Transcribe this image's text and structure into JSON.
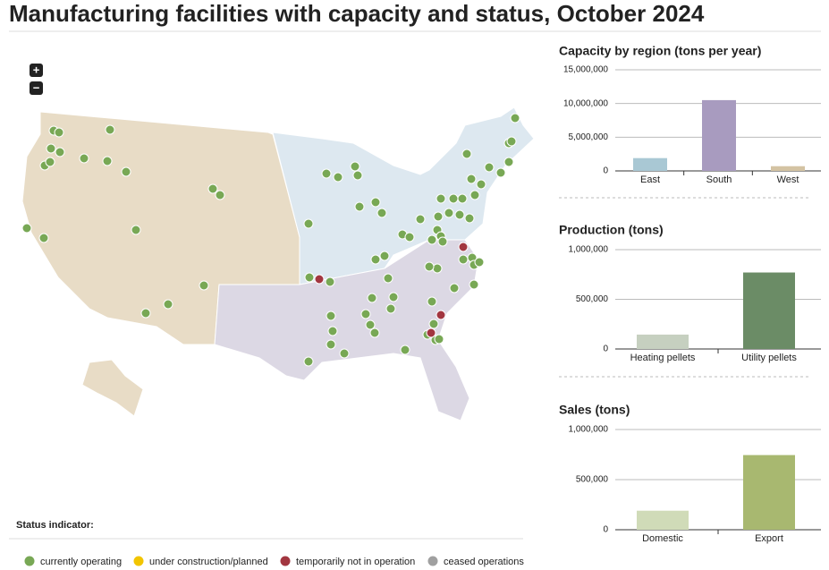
{
  "header": {
    "title": "Manufacturing facilities with capacity and status, October 2024"
  },
  "map": {
    "zoom_in": "+",
    "zoom_out": "−",
    "legend_title": "Status indicator:",
    "legend": [
      {
        "label": "currently operating",
        "color": "#78a855"
      },
      {
        "label": "under construction/planned",
        "color": "#f2c500"
      },
      {
        "label": "temporarily not in operation",
        "color": "#a23640"
      },
      {
        "label": "ceased operations",
        "color": "#a0a0a0"
      }
    ]
  },
  "chart_data": [
    {
      "type": "bar",
      "title": "Capacity by region (tons per year)",
      "categories": [
        "East",
        "South",
        "West"
      ],
      "values": [
        1900000,
        10500000,
        700000
      ],
      "colors": [
        "#a9c8d4",
        "#a89bbf",
        "#d4c3a3"
      ],
      "ylim": [
        0,
        15000000
      ],
      "yticks": [
        0,
        {
          "value": 5000000,
          "label": "5,000,000"
        },
        {
          "value": 10000000,
          "label": "10,000,000"
        },
        {
          "value": 15000000,
          "label": "15,000,000"
        }
      ],
      "grid": true
    },
    {
      "type": "bar",
      "title": "Production (tons)",
      "categories": [
        "Heating pellets",
        "Utility pellets"
      ],
      "values": [
        145000,
        770000
      ],
      "colors": [
        "#c6d0c0",
        "#6b8c66"
      ],
      "ylim": [
        0,
        1000000
      ],
      "yticks": [
        0,
        {
          "value": 500000,
          "label": "500,000"
        },
        {
          "value": 1000000,
          "label": "1,000,000"
        }
      ],
      "grid": true
    },
    {
      "type": "bar",
      "title": "Sales (tons)",
      "categories": [
        "Domestic",
        "Export"
      ],
      "values": [
        190000,
        745000
      ],
      "colors": [
        "#d0dbb8",
        "#a8b870"
      ],
      "ylim": [
        0,
        1000000
      ],
      "yticks": [
        0,
        {
          "value": 500000,
          "label": "500,000"
        },
        {
          "value": 1000000,
          "label": "1,000,000"
        }
      ],
      "grid": true
    }
  ]
}
